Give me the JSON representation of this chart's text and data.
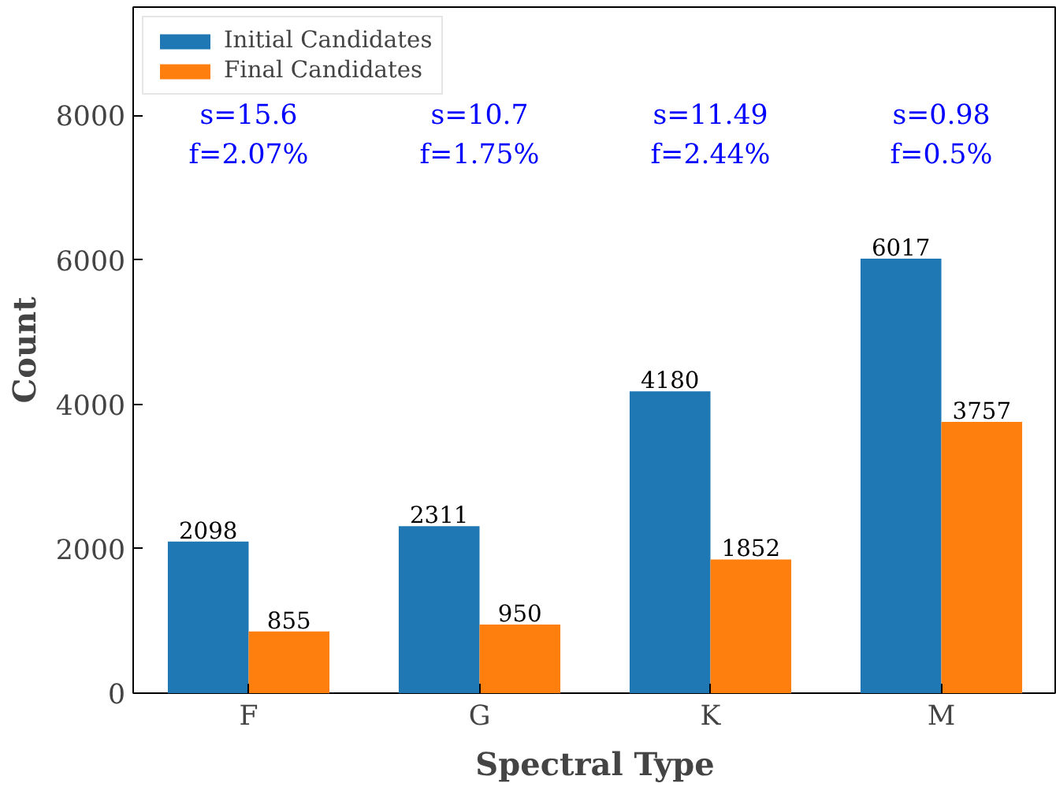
{
  "chart_data": {
    "type": "bar",
    "xlabel": "Spectral Type",
    "ylabel": "Count",
    "categories": [
      "F",
      "G",
      "K",
      "M"
    ],
    "series": [
      {
        "name": "Initial Candidates",
        "color": "#1f77b4",
        "values": [
          2098,
          2311,
          4180,
          6017
        ]
      },
      {
        "name": "Final Candidates",
        "color": "#ff7f0e",
        "values": [
          855,
          950,
          1852,
          3757
        ]
      }
    ],
    "ylim": [
      0,
      9500
    ],
    "yticks": [
      0,
      2000,
      4000,
      6000,
      8000
    ],
    "data_labels": true,
    "grid": false,
    "legend": "top left",
    "annotations": [
      "s=15.6",
      "f=2.07%",
      "s=10.7",
      "f=1.75%",
      "s=11.49",
      "f=2.44%",
      "s=0.98",
      "f=0.5%"
    ]
  }
}
